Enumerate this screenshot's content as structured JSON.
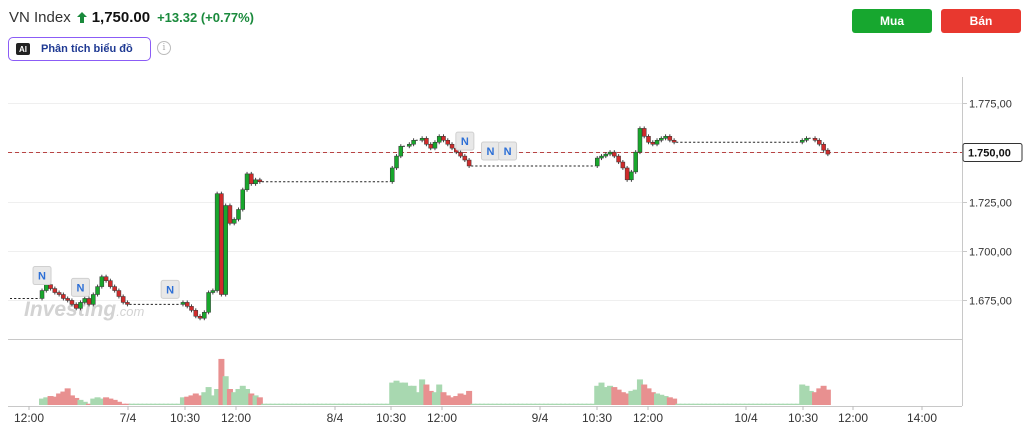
{
  "header": {
    "name": "VN Index",
    "price": "1,750.00",
    "change": "+13.32",
    "change_pct": "(+0.77%)",
    "up_color": "#1a8a3c"
  },
  "actions": {
    "buy_label": "Mua",
    "sell_label": "Bán"
  },
  "ai": {
    "badge": "AI",
    "label": "Phân tích biểu đồ",
    "info_icon": "info-icon"
  },
  "watermark": {
    "brand": "Investing",
    "suffix": ".com"
  },
  "chart_data": {
    "type": "candlestick",
    "y_ticks": [
      "1.775,00",
      "1.750,00",
      "1.725,00",
      "1.700,00",
      "1.675,00"
    ],
    "y_tick_values": [
      1775,
      1750,
      1725,
      1700,
      1675
    ],
    "ylim": [
      1656,
      1788
    ],
    "current_price_label": "1.750,00",
    "current_price": 1750,
    "x_ticks": [
      "12:00",
      "7/4",
      "10:30",
      "12:00",
      "8/4",
      "10:30",
      "12:00",
      "9/4",
      "10:30",
      "12:00",
      "10/4",
      "10:30",
      "12:00",
      "14:00"
    ],
    "up_color": "#18a72c",
    "down_color": "#d02b2b",
    "news_markers": [
      "N",
      "N",
      "N",
      "N",
      "N",
      "N"
    ],
    "days": [
      {
        "open": 1676,
        "closes": [
          1676,
          1676,
          1676,
          1676,
          1676,
          1676,
          1676,
          1680,
          1683,
          1681,
          1679,
          1678,
          1676,
          1675,
          1673,
          1671,
          1674,
          1676,
          1673,
          1678,
          1682,
          1687,
          1685,
          1682,
          1680,
          1677,
          1674,
          1673,
          1673,
          1673,
          1673,
          1673,
          1673,
          1673,
          1673,
          1673,
          1673,
          1673,
          1673,
          1673,
          1674,
          1672,
          1670,
          1667,
          1666,
          1669,
          1679,
          1680
        ],
        "volumes": [
          0,
          0,
          0,
          0,
          0,
          0,
          0,
          0.1,
          0.12,
          0.14,
          0.13,
          0.18,
          0.21,
          0.26,
          0.15,
          0.11,
          0.08,
          0.05,
          0.02,
          0.1,
          0.12,
          0.1,
          0.12,
          0.1,
          0.08,
          0.05,
          0.02,
          0.02,
          0.02,
          0.02,
          0.02,
          0.02,
          0.02,
          0.02,
          0.02,
          0.02,
          0.02,
          0.02,
          0.02,
          0.02,
          0.12,
          0.13,
          0.15,
          0.18,
          0.15,
          0.2,
          0.28,
          0.15
        ]
      },
      {
        "open": 1680,
        "closes": [
          1729,
          1678,
          1723,
          1714,
          1716,
          1721,
          1731,
          1739,
          1734,
          1736,
          1735,
          1735,
          1735,
          1735,
          1735,
          1735,
          1735,
          1735,
          1735,
          1735,
          1735,
          1735,
          1735,
          1735,
          1735,
          1735,
          1735,
          1735,
          1735,
          1735,
          1735,
          1735,
          1735,
          1735,
          1735,
          1735,
          1735,
          1735,
          1735,
          1735,
          1735,
          1742,
          1748,
          1753,
          1753,
          1754,
          1756,
          1756
        ],
        "volumes": [
          0.25,
          0.72,
          0.45,
          0.25,
          0.2,
          0.25,
          0.3,
          0.25,
          0.18,
          0.15,
          0.12,
          0.02,
          0.02,
          0.02,
          0.02,
          0.02,
          0.02,
          0.02,
          0.02,
          0.02,
          0.02,
          0.02,
          0.02,
          0.02,
          0.02,
          0.02,
          0.02,
          0.02,
          0.02,
          0.02,
          0.02,
          0.02,
          0.02,
          0.02,
          0.02,
          0.02,
          0.02,
          0.02,
          0.02,
          0.02,
          0.02,
          0.35,
          0.38,
          0.35,
          0.35,
          0.3,
          0.3,
          0.2
        ]
      },
      {
        "open": 1756,
        "closes": [
          1757,
          1754,
          1752,
          1755,
          1758,
          1756,
          1754,
          1752,
          1750,
          1748,
          1746,
          1743,
          1743,
          1743,
          1743,
          1743,
          1743,
          1743,
          1743,
          1743,
          1743,
          1743,
          1743,
          1743,
          1743,
          1743,
          1743,
          1743,
          1743,
          1743,
          1743,
          1743,
          1743,
          1743,
          1743,
          1743,
          1743,
          1743,
          1743,
          1743,
          1743,
          1747,
          1748,
          1749,
          1750,
          1748,
          1745,
          1742
        ],
        "volumes": [
          0.4,
          0.32,
          0.22,
          0.2,
          0.32,
          0.2,
          0.15,
          0.12,
          0.14,
          0.18,
          0.16,
          0.22,
          0.02,
          0.02,
          0.02,
          0.02,
          0.02,
          0.02,
          0.02,
          0.02,
          0.02,
          0.02,
          0.02,
          0.02,
          0.02,
          0.02,
          0.02,
          0.02,
          0.02,
          0.02,
          0.02,
          0.02,
          0.02,
          0.02,
          0.02,
          0.02,
          0.02,
          0.02,
          0.02,
          0.02,
          0.02,
          0.3,
          0.35,
          0.28,
          0.3,
          0.28,
          0.24,
          0.2
        ]
      },
      {
        "open": 1742,
        "closes": [
          1736,
          1740,
          1750,
          1762,
          1758,
          1755,
          1754,
          1756,
          1757,
          1758,
          1756,
          1755,
          1755,
          1755,
          1755,
          1755,
          1755,
          1755,
          1755,
          1755,
          1755,
          1755,
          1755,
          1755,
          1755,
          1755,
          1755,
          1755,
          1755,
          1755,
          1755,
          1755,
          1755,
          1755,
          1755,
          1755,
          1755,
          1755,
          1755,
          1755,
          1755,
          1756,
          1757,
          1757,
          1756,
          1754,
          1751,
          1749
        ],
        "volumes": [
          0.18,
          0.22,
          0.24,
          0.4,
          0.32,
          0.26,
          0.2,
          0.18,
          0.16,
          0.14,
          0.12,
          0.1,
          0.02,
          0.02,
          0.02,
          0.02,
          0.02,
          0.02,
          0.02,
          0.02,
          0.02,
          0.02,
          0.02,
          0.02,
          0.02,
          0.02,
          0.02,
          0.02,
          0.02,
          0.02,
          0.02,
          0.02,
          0.02,
          0.02,
          0.02,
          0.02,
          0.02,
          0.02,
          0.02,
          0.02,
          0.02,
          0.32,
          0.3,
          0.22,
          0.2,
          0.26,
          0.3,
          0.24
        ]
      }
    ]
  }
}
